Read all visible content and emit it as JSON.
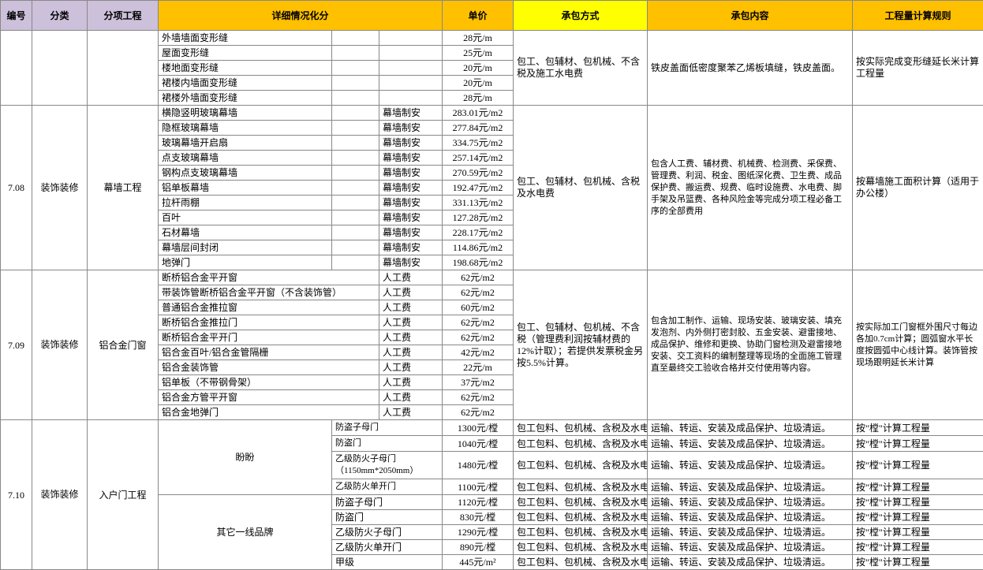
{
  "header": {
    "c_idx": "编号",
    "c_cat": "分类",
    "c_sub": "分项工程",
    "c_det": "详细情况化分",
    "c_price": "单价",
    "c_method": "承包方式",
    "c_content": "承包内容",
    "c_rule": "工程量计算规则",
    "bg_purple": "#ccc0da",
    "bg_yellow": "#ffc000",
    "bg_yellow2": "#ffff00"
  },
  "blockA": {
    "rows": [
      {
        "d1": "外墙墙面变形缝",
        "d2": "",
        "d3": "",
        "price": "28元/m"
      },
      {
        "d1": "屋面变形缝",
        "d2": "",
        "d3": "",
        "price": "25元/m"
      },
      {
        "d1": "楼地面变形缝",
        "d2": "",
        "d3": "",
        "price": "20元/m"
      },
      {
        "d1": "裙楼内墙面变形缝",
        "d2": "",
        "d3": "",
        "price": "20元/m"
      },
      {
        "d1": "裙楼外墙面变形缝",
        "d2": "",
        "d3": "",
        "price": "28元/m"
      }
    ],
    "method": "包工、包辅材、包机械、不含税及施工水电费",
    "content": "铁皮盖面低密度聚苯乙烯板填缝，铁皮盖面。",
    "rule": "按实际完成变形缝延长米计算工程量"
  },
  "block708": {
    "idx": "7.08",
    "cat": "装饰装修",
    "sub": "幕墙工程",
    "rows": [
      {
        "d1": "横隐竖明玻璃幕墙",
        "d3": "幕墙制安",
        "price": "283.01元/m2"
      },
      {
        "d1": "隐框玻璃幕墙",
        "d3": "幕墙制安",
        "price": "277.84元/m2"
      },
      {
        "d1": "玻璃幕墙开启扇",
        "d3": "幕墙制安",
        "price": "334.75元/m2"
      },
      {
        "d1": "点支玻璃幕墙",
        "d3": "幕墙制安",
        "price": "257.14元/m2"
      },
      {
        "d1": "钢构点支玻璃幕墙",
        "d3": "幕墙制安",
        "price": "270.59元/m2"
      },
      {
        "d1": "铝单板幕墙",
        "d3": "幕墙制安",
        "price": "192.47元/m2"
      },
      {
        "d1": "拉杆雨棚",
        "d3": "幕墙制安",
        "price": "331.13元/m2"
      },
      {
        "d1": "百叶",
        "d3": "幕墙制安",
        "price": "127.28元/m2"
      },
      {
        "d1": "石材幕墙",
        "d3": "幕墙制安",
        "price": "228.17元/m2"
      },
      {
        "d1": "幕墙层间封闭",
        "d3": "幕墙制安",
        "price": "114.86元/m2"
      },
      {
        "d1": "地弹门",
        "d3": "幕墙制安",
        "price": "198.68元/m2"
      }
    ],
    "method": "包工、包辅材、包机械、含税及水电费",
    "content": "包含人工费、辅材费、机械费、检测费、采保费、管理费、利润、税金、图纸深化费、卫生费、成品保护费、搬运费、规费、临时设施费、水电费、脚手架及吊篮费、各种风险金等完成分项工程必备工序的全部费用",
    "rule": "按幕墙施工面积计算（适用于办公楼）"
  },
  "block709": {
    "idx": "7.09",
    "cat": "装饰装修",
    "sub": "铝合金门窗",
    "rows": [
      {
        "d1": "断桥铝合金平开窗",
        "d3": "人工费",
        "price": "62元/m2"
      },
      {
        "d1": "带装饰管断桥铝合金平开窗（不含装饰管）",
        "d3": "人工费",
        "price": "62元/m2"
      },
      {
        "d1": "普通铝合金推拉窗",
        "d3": "人工费",
        "price": "60元/m2"
      },
      {
        "d1": "断桥铝合金推拉门",
        "d3": "人工费",
        "price": "62元/m2"
      },
      {
        "d1": "断桥铝合金平开门",
        "d3": "人工费",
        "price": "62元/m2"
      },
      {
        "d1": "铝合金百叶/铝合金管隔栅",
        "d3": "人工费",
        "price": "42元/m2"
      },
      {
        "d1": "铝合金装饰管",
        "d3": "人工费",
        "price": "22元/m"
      },
      {
        "d1": "铝单板（不带钢骨架）",
        "d3": "人工费",
        "price": "37元/m2"
      },
      {
        "d1": "铝合金方管平开窗",
        "d3": "人工费",
        "price": "62元/m2"
      },
      {
        "d1": "铝合金地弹门",
        "d3": "人工费",
        "price": "62元/m2"
      }
    ],
    "method": "包工、包辅材、包机械、不含税（管理费利润按辅材费的12%计取）；若提供发票税金另按5.5%计算。",
    "content": "包含加工制作、运输、现场安装、玻璃安装、填充发泡剂、内外侧打密封胶、五金安装、避雷接地、成品保护、维修和更换、协助门窗检测及避雷接地安装、交工资料的编制整理等现场的全面施工管理直至最终交工验收合格并交付使用等内容。",
    "rule": "按实际加工门窗框外围尺寸每边各加0.7cm计算；圆弧窗水平长度按圆弧中心线计算。装饰管按现场跟明延长米计算"
  },
  "block710": {
    "idx": "7.10",
    "cat": "装饰装修",
    "sub": "入户门工程",
    "brand1": "盼盼",
    "brand2": "其它一线品牌",
    "rows1": [
      {
        "d1": "防盗子母门",
        "price": "1300元/樘"
      },
      {
        "d1": "防盗门",
        "price": "1040元/樘"
      },
      {
        "d1": "乙级防火子母门（1150mm*2050mm）",
        "price": "1480元/樘"
      },
      {
        "d1": "乙级防火单开门",
        "price": "1100元/樘"
      }
    ],
    "rows2": [
      {
        "d1": "防盗子母门",
        "price": "1120元/樘"
      },
      {
        "d1": "防盗门",
        "price": "830元/樘"
      },
      {
        "d1": "乙级防火子母门",
        "price": "1290元/樘"
      },
      {
        "d1": "乙级防火单开门",
        "price": "890元/樘"
      },
      {
        "d1": "甲级",
        "price": "445元/m²"
      }
    ],
    "method": "包工包料、包机械、含税及水电费",
    "content": "运输、转运、安装及成品保护、垃圾清运。",
    "rule": "按\"樘\"计算工程量"
  }
}
